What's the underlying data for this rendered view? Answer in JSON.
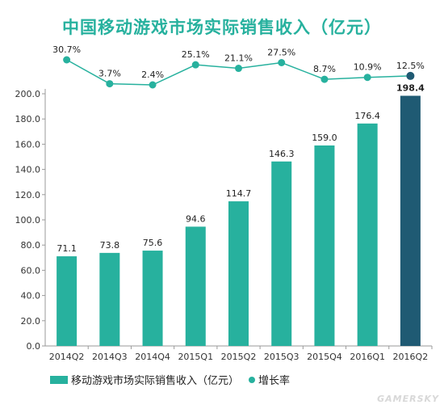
{
  "chart_data": {
    "type": "bar",
    "title": "中国移动游戏市场实际销售收入（亿元）",
    "categories": [
      "2014Q2",
      "2014Q3",
      "2014Q4",
      "2015Q1",
      "2015Q2",
      "2015Q3",
      "2015Q4",
      "2016Q1",
      "2016Q2"
    ],
    "series": [
      {
        "name": "移动游戏市场实际销售收入（亿元）",
        "type": "bar",
        "values": [
          71.1,
          73.8,
          75.6,
          94.6,
          114.7,
          146.3,
          159.0,
          176.4,
          198.4
        ],
        "labels": [
          "71.1",
          "73.8",
          "75.6",
          "94.6",
          "114.7",
          "146.3",
          "159.0",
          "176.4",
          "198.4"
        ]
      },
      {
        "name": "增长率",
        "type": "line",
        "values": [
          30.7,
          3.7,
          2.4,
          25.1,
          21.1,
          27.5,
          8.7,
          10.9,
          12.5
        ],
        "labels": [
          "30.7%",
          "3.7%",
          "2.4%",
          "25.1%",
          "21.1%",
          "27.5%",
          "8.7%",
          "10.9%",
          "12.5%"
        ]
      }
    ],
    "yticks": [
      "0.0",
      "20.0",
      "40.0",
      "60.0",
      "80.0",
      "100.0",
      "120.0",
      "140.0",
      "160.0",
      "180.0",
      "200.0"
    ],
    "ylim": [
      0,
      200
    ],
    "colors": {
      "bar": "#27b19e",
      "highlight_bar": "#1f5a73",
      "line": "#27b19e",
      "highlight_point": "#1f5a73",
      "title": "#27b19e"
    },
    "legend": "bottom-left",
    "grid": false
  },
  "watermark": "GAMERSKY"
}
